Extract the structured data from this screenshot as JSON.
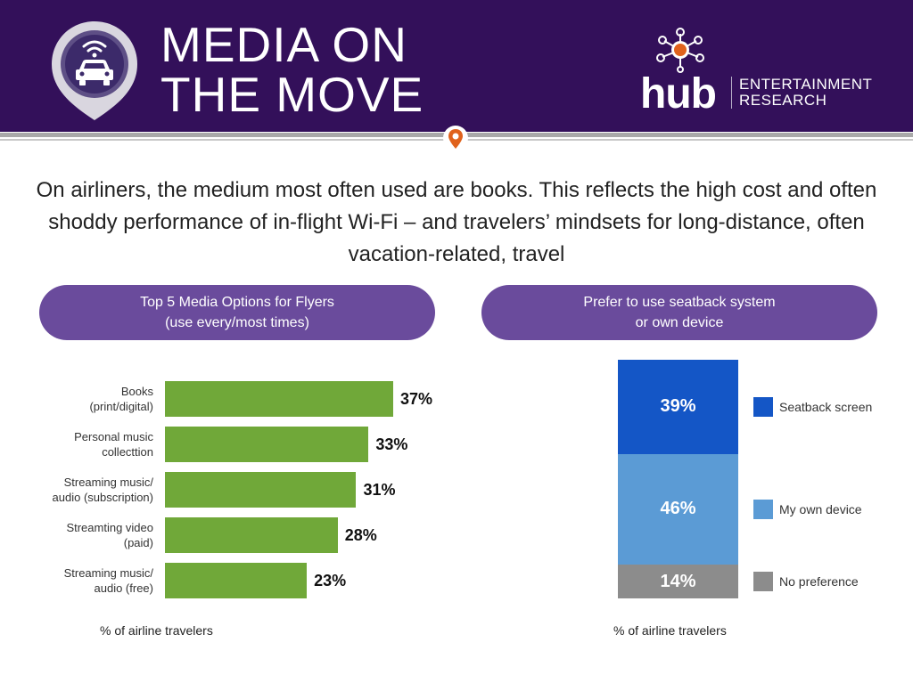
{
  "header": {
    "title_line1": "MEDIA ON",
    "title_line2": "THE MOVE",
    "brand": "hub",
    "brand_sub1": "ENTERTAINMENT",
    "brand_sub2": "RESEARCH",
    "logo_icon": "car-wifi-icon",
    "brand_icon": "hub-network-icon",
    "divider_icon": "location-pin-icon"
  },
  "headline": "On airliners, the medium most often used are books. This reflects the high cost and often shoddy performance of in-flight Wi-Fi – and travelers’ mindsets for long-distance, often vacation-related, travel",
  "colors": {
    "header_bg": "#33105a",
    "pill_bg": "#6a4b9c",
    "bar_green": "#70a839",
    "seatback": "#1456c6",
    "own_device": "#5b9bd5",
    "no_pref": "#8c8c8c",
    "pin_orange": "#e0621c"
  },
  "left_panel": {
    "title_line1": "Top 5 Media Options for Flyers",
    "title_line2": "(use every/most times)",
    "footnote": "% of airline travelers"
  },
  "right_panel": {
    "title_line1": "Prefer to use seatback system",
    "title_line2": "or own device",
    "footnote": "% of airline travelers"
  },
  "chart_data": [
    {
      "type": "bar",
      "orientation": "horizontal",
      "categories": [
        [
          "Books",
          "(print/digital)"
        ],
        [
          "Personal music",
          "collecttion"
        ],
        [
          "Streaming music/",
          "audio (subscription)"
        ],
        [
          "Streamting video",
          "(paid)"
        ],
        [
          "Streaming music/",
          "audio (free)"
        ]
      ],
      "values": [
        37,
        33,
        31,
        28,
        23
      ],
      "value_labels": [
        "37%",
        "33%",
        "31%",
        "28%",
        "23%"
      ],
      "title": "Top 5 Media Options for Flyers (use every/most times)",
      "xlabel": "% of airline travelers",
      "xlim": [
        0,
        37
      ]
    },
    {
      "type": "bar",
      "orientation": "stacked-vertical",
      "series": [
        {
          "name": "Seatback screen",
          "value": 39,
          "label": "39%",
          "color": "#1456c6"
        },
        {
          "name": "My own device",
          "value": 46,
          "label": "46%",
          "color": "#5b9bd5"
        },
        {
          "name": "No preference",
          "value": 14,
          "label": "14%",
          "color": "#8c8c8c"
        }
      ],
      "title": "Prefer to use seatback system or own device",
      "xlabel": "% of airline travelers",
      "legend_position": "right"
    }
  ]
}
